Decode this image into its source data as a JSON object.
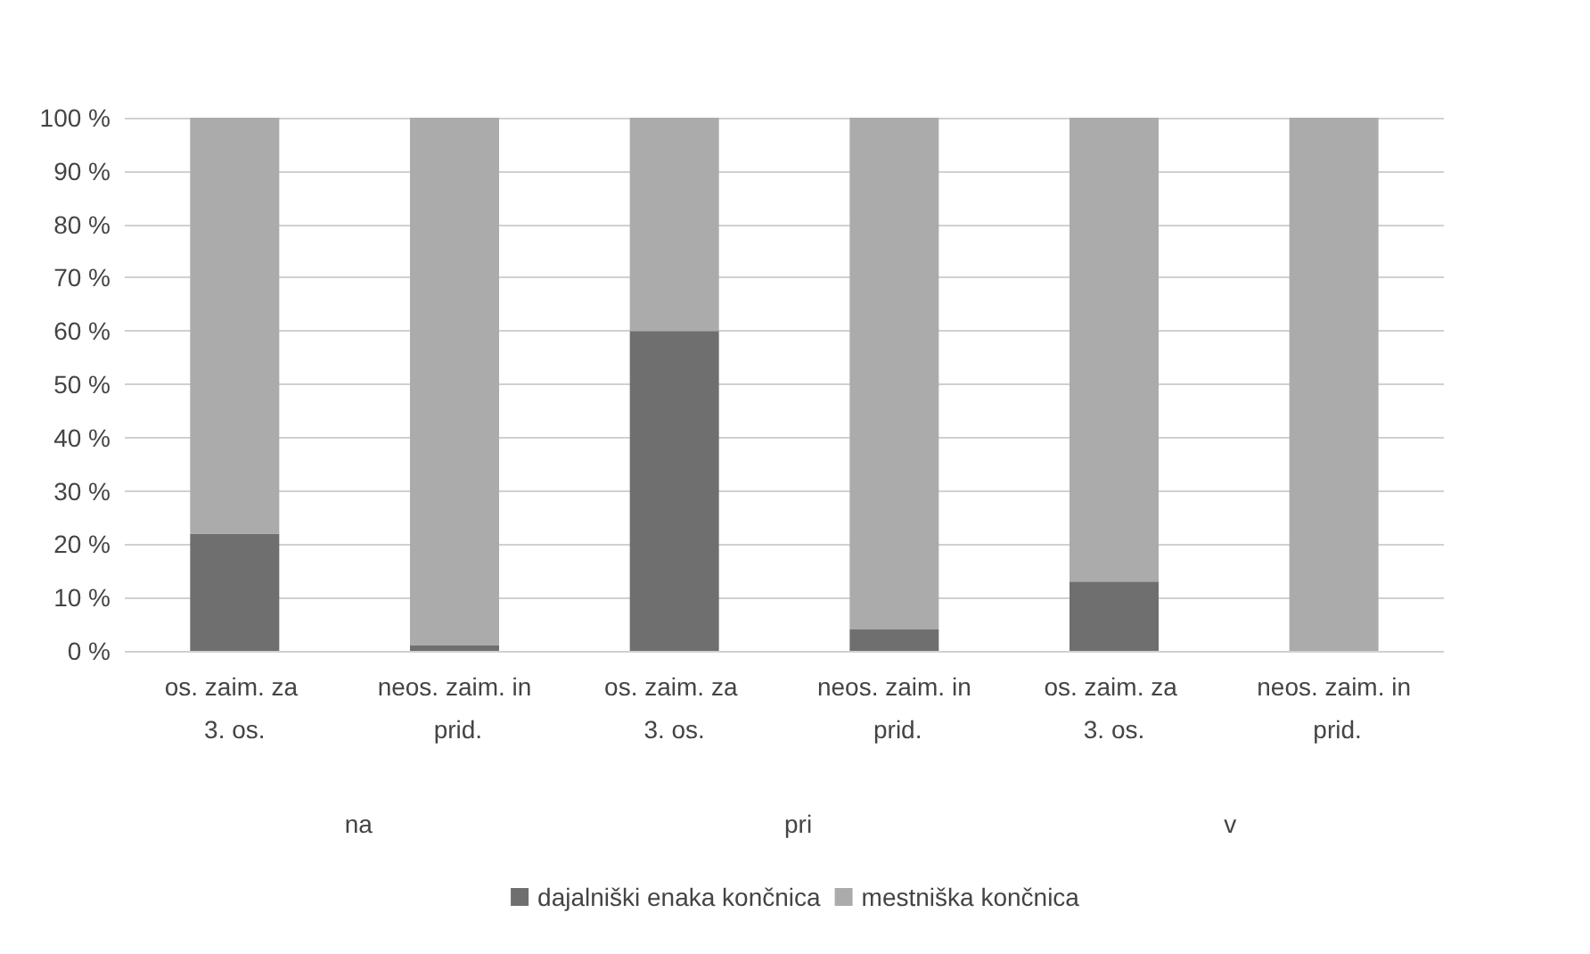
{
  "chart_data": {
    "type": "bar",
    "stacked": true,
    "categories": [
      "os. zaim. za 3. os.",
      "neos. zaim. in prid.",
      "os. zaim. za 3. os.",
      "neos. zaim. in prid.",
      "os. zaim. za 3. os.",
      "neos. zaim. in prid."
    ],
    "series": [
      {
        "name": "dajalniški enaka končnica",
        "color": "#6f6f6f",
        "values": [
          22,
          1,
          60,
          4,
          13,
          0
        ]
      },
      {
        "name": "mestniška končnica",
        "color": "#ababab",
        "values": [
          78,
          99,
          40,
          96,
          87,
          100
        ]
      }
    ],
    "ylim": [
      0,
      100
    ],
    "yticks": [
      {
        "value": 0,
        "label": "0 %"
      },
      {
        "value": 10,
        "label": "10 %"
      },
      {
        "value": 20,
        "label": "20 %"
      },
      {
        "value": 30,
        "label": "30 %"
      },
      {
        "value": 40,
        "label": "40 %"
      },
      {
        "value": 50,
        "label": "50 %"
      },
      {
        "value": 60,
        "label": "60 %"
      },
      {
        "value": 70,
        "label": "70 %"
      },
      {
        "value": 80,
        "label": "80 %"
      },
      {
        "value": 90,
        "label": "90 %"
      },
      {
        "value": 100,
        "label": "100 %"
      }
    ],
    "grid": true,
    "legend": "bottom",
    "annotations": [
      "na",
      "pri",
      "v"
    ]
  }
}
